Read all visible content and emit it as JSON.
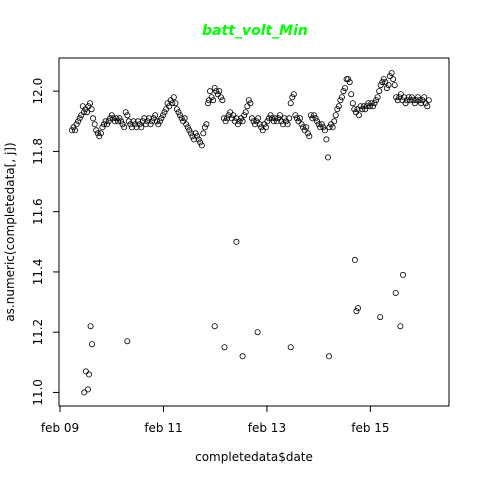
{
  "chart_data": {
    "type": "scatter",
    "title": "batt_volt_Min",
    "title_color": "#00ff00",
    "xlabel": "completedata$date",
    "ylabel": "as.numeric(completedata[, j])",
    "x_tick_labels": [
      "feb 09",
      "feb 11",
      "feb 13",
      "feb 15"
    ],
    "x_ticks_day": [
      9,
      11,
      13,
      15
    ],
    "y_ticks": [
      11.0,
      11.2,
      11.4,
      11.6,
      11.8,
      12.0
    ],
    "y_tick_labels": [
      "11.0",
      "11.2",
      "11.4",
      "11.6",
      "11.8",
      "12.0"
    ],
    "xlim_day": [
      8.98,
      16.52
    ],
    "ylim": [
      10.955,
      12.11
    ],
    "grid": false,
    "points": [
      [
        9.23,
        11.87
      ],
      [
        9.26,
        11.88
      ],
      [
        9.29,
        11.87
      ],
      [
        9.32,
        11.89
      ],
      [
        9.35,
        11.9
      ],
      [
        9.38,
        11.91
      ],
      [
        9.41,
        11.92
      ],
      [
        9.44,
        11.95
      ],
      [
        9.46,
        11.93
      ],
      [
        9.49,
        11.94
      ],
      [
        9.52,
        11.93
      ],
      [
        9.55,
        11.95
      ],
      [
        9.58,
        11.96
      ],
      [
        9.61,
        11.94
      ],
      [
        9.64,
        11.91
      ],
      [
        9.67,
        11.89
      ],
      [
        9.7,
        11.87
      ],
      [
        9.73,
        11.86
      ],
      [
        9.76,
        11.85
      ],
      [
        9.79,
        11.86
      ],
      [
        9.82,
        11.88
      ],
      [
        9.85,
        11.89
      ],
      [
        9.88,
        11.9
      ],
      [
        9.91,
        11.89
      ],
      [
        9.94,
        11.9
      ],
      [
        9.97,
        11.91
      ],
      [
        10.0,
        11.92
      ],
      [
        10.03,
        11.91
      ],
      [
        10.06,
        11.9
      ],
      [
        10.09,
        11.91
      ],
      [
        10.12,
        11.9
      ],
      [
        10.15,
        11.91
      ],
      [
        10.18,
        11.9
      ],
      [
        10.21,
        11.89
      ],
      [
        10.24,
        11.88
      ],
      [
        10.27,
        11.93
      ],
      [
        10.3,
        11.92
      ],
      [
        10.33,
        11.9
      ],
      [
        10.36,
        11.89
      ],
      [
        10.39,
        11.88
      ],
      [
        10.42,
        11.9
      ],
      [
        10.45,
        11.89
      ],
      [
        10.48,
        11.88
      ],
      [
        10.51,
        11.9
      ],
      [
        10.54,
        11.89
      ],
      [
        10.57,
        11.88
      ],
      [
        10.6,
        11.9
      ],
      [
        10.63,
        11.91
      ],
      [
        10.66,
        11.89
      ],
      [
        10.69,
        11.9
      ],
      [
        10.72,
        11.91
      ],
      [
        10.75,
        11.89
      ],
      [
        10.78,
        11.9
      ],
      [
        10.81,
        11.91
      ],
      [
        10.84,
        11.92
      ],
      [
        10.87,
        11.9
      ],
      [
        10.9,
        11.89
      ],
      [
        10.93,
        11.9
      ],
      [
        10.96,
        11.91
      ],
      [
        10.99,
        11.92
      ],
      [
        11.02,
        11.93
      ],
      [
        11.05,
        11.94
      ],
      [
        11.08,
        11.96
      ],
      [
        11.11,
        11.95
      ],
      [
        11.14,
        11.97
      ],
      [
        11.17,
        11.96
      ],
      [
        11.2,
        11.98
      ],
      [
        11.23,
        11.96
      ],
      [
        11.26,
        11.94
      ],
      [
        11.29,
        11.93
      ],
      [
        11.32,
        11.92
      ],
      [
        11.35,
        11.91
      ],
      [
        11.38,
        11.9
      ],
      [
        11.41,
        11.91
      ],
      [
        11.44,
        11.89
      ],
      [
        11.47,
        11.88
      ],
      [
        11.5,
        11.87
      ],
      [
        11.53,
        11.86
      ],
      [
        11.56,
        11.85
      ],
      [
        11.59,
        11.84
      ],
      [
        11.62,
        11.86
      ],
      [
        11.65,
        11.85
      ],
      [
        11.68,
        11.84
      ],
      [
        11.71,
        11.83
      ],
      [
        11.74,
        11.82
      ],
      [
        11.77,
        11.86
      ],
      [
        11.8,
        11.88
      ],
      [
        11.83,
        11.89
      ],
      [
        11.86,
        11.96
      ],
      [
        11.88,
        11.97
      ],
      [
        11.9,
        12.0
      ],
      [
        11.93,
        11.98
      ],
      [
        11.96,
        11.97
      ],
      [
        11.99,
        12.01
      ],
      [
        12.02,
        12.0
      ],
      [
        12.05,
        11.99
      ],
      [
        12.08,
        12.0
      ],
      [
        12.11,
        11.98
      ],
      [
        12.14,
        11.97
      ],
      [
        12.17,
        11.91
      ],
      [
        12.2,
        11.9
      ],
      [
        12.23,
        11.91
      ],
      [
        12.26,
        11.92
      ],
      [
        12.29,
        11.93
      ],
      [
        12.32,
        11.91
      ],
      [
        12.35,
        11.92
      ],
      [
        12.38,
        11.9
      ],
      [
        12.41,
        11.91
      ],
      [
        12.44,
        11.89
      ],
      [
        12.47,
        11.9
      ],
      [
        12.5,
        11.91
      ],
      [
        12.53,
        11.9
      ],
      [
        12.56,
        11.92
      ],
      [
        12.59,
        11.93
      ],
      [
        12.62,
        11.95
      ],
      [
        12.65,
        11.97
      ],
      [
        12.68,
        11.96
      ],
      [
        12.71,
        11.91
      ],
      [
        12.74,
        11.9
      ],
      [
        12.77,
        11.89
      ],
      [
        12.8,
        11.9
      ],
      [
        12.83,
        11.91
      ],
      [
        12.86,
        11.89
      ],
      [
        12.89,
        11.88
      ],
      [
        12.92,
        11.87
      ],
      [
        12.95,
        11.89
      ],
      [
        12.98,
        11.88
      ],
      [
        13.01,
        11.9
      ],
      [
        13.04,
        11.91
      ],
      [
        13.07,
        11.92
      ],
      [
        13.1,
        11.91
      ],
      [
        13.13,
        11.9
      ],
      [
        13.16,
        11.91
      ],
      [
        13.19,
        11.9
      ],
      [
        13.22,
        11.91
      ],
      [
        13.25,
        11.92
      ],
      [
        13.28,
        11.9
      ],
      [
        13.31,
        11.89
      ],
      [
        13.34,
        11.91
      ],
      [
        13.37,
        11.9
      ],
      [
        13.4,
        11.89
      ],
      [
        13.43,
        11.91
      ],
      [
        13.46,
        11.96
      ],
      [
        13.49,
        11.98
      ],
      [
        13.52,
        11.99
      ],
      [
        13.55,
        11.92
      ],
      [
        13.58,
        11.91
      ],
      [
        13.61,
        11.9
      ],
      [
        13.64,
        11.91
      ],
      [
        13.67,
        11.89
      ],
      [
        13.7,
        11.88
      ],
      [
        13.73,
        11.87
      ],
      [
        13.76,
        11.88
      ],
      [
        13.79,
        11.86
      ],
      [
        13.82,
        11.85
      ],
      [
        13.85,
        11.92
      ],
      [
        13.88,
        11.91
      ],
      [
        13.91,
        11.92
      ],
      [
        13.94,
        11.91
      ],
      [
        13.97,
        11.9
      ],
      [
        14.0,
        11.89
      ],
      [
        14.03,
        11.88
      ],
      [
        14.06,
        11.89
      ],
      [
        14.09,
        11.88
      ],
      [
        14.12,
        11.87
      ],
      [
        14.15,
        11.84
      ],
      [
        14.18,
        11.78
      ],
      [
        14.21,
        11.88
      ],
      [
        14.24,
        11.89
      ],
      [
        14.27,
        11.88
      ],
      [
        14.3,
        11.9
      ],
      [
        14.33,
        11.92
      ],
      [
        14.36,
        11.94
      ],
      [
        14.39,
        11.95
      ],
      [
        14.42,
        11.97
      ],
      [
        14.45,
        11.98
      ],
      [
        14.48,
        12.0
      ],
      [
        14.51,
        12.01
      ],
      [
        14.54,
        12.04
      ],
      [
        14.57,
        12.04
      ],
      [
        14.6,
        12.03
      ],
      [
        14.63,
        11.99
      ],
      [
        14.66,
        11.96
      ],
      [
        14.69,
        11.94
      ],
      [
        14.72,
        11.93
      ],
      [
        14.75,
        11.94
      ],
      [
        14.78,
        11.92
      ],
      [
        14.81,
        11.95
      ],
      [
        14.84,
        11.94
      ],
      [
        14.87,
        11.95
      ],
      [
        14.9,
        11.94
      ],
      [
        14.93,
        11.95
      ],
      [
        14.96,
        11.96
      ],
      [
        14.99,
        11.95
      ],
      [
        15.02,
        11.96
      ],
      [
        15.05,
        11.95
      ],
      [
        15.08,
        11.96
      ],
      [
        15.11,
        11.97
      ],
      [
        15.14,
        11.98
      ],
      [
        15.17,
        12.0
      ],
      [
        15.2,
        12.02
      ],
      [
        15.23,
        12.03
      ],
      [
        15.26,
        12.04
      ],
      [
        15.29,
        12.03
      ],
      [
        15.32,
        12.01
      ],
      [
        15.35,
        12.02
      ],
      [
        15.38,
        12.05
      ],
      [
        15.41,
        12.06
      ],
      [
        15.44,
        12.04
      ],
      [
        15.47,
        12.02
      ],
      [
        15.5,
        11.98
      ],
      [
        15.53,
        11.97
      ],
      [
        15.56,
        11.98
      ],
      [
        15.59,
        11.99
      ],
      [
        15.62,
        11.97
      ],
      [
        15.65,
        11.98
      ],
      [
        15.68,
        11.96
      ],
      [
        15.71,
        11.97
      ],
      [
        15.74,
        11.98
      ],
      [
        15.77,
        11.97
      ],
      [
        15.8,
        11.98
      ],
      [
        15.83,
        11.97
      ],
      [
        15.86,
        11.96
      ],
      [
        15.89,
        11.97
      ],
      [
        15.92,
        11.98
      ],
      [
        15.95,
        11.97
      ],
      [
        15.98,
        11.96
      ],
      [
        16.01,
        11.97
      ],
      [
        16.04,
        11.98
      ],
      [
        16.07,
        11.96
      ],
      [
        16.1,
        11.95
      ],
      [
        16.13,
        11.97
      ],
      [
        9.47,
        11.0
      ],
      [
        9.5,
        11.07
      ],
      [
        9.54,
        11.01
      ],
      [
        9.56,
        11.06
      ],
      [
        9.59,
        11.22
      ],
      [
        9.62,
        11.16
      ],
      [
        10.3,
        11.17
      ],
      [
        11.99,
        11.22
      ],
      [
        12.18,
        11.15
      ],
      [
        12.41,
        11.5
      ],
      [
        12.53,
        11.12
      ],
      [
        12.82,
        11.2
      ],
      [
        13.46,
        11.15
      ],
      [
        14.2,
        11.12
      ],
      [
        14.7,
        11.44
      ],
      [
        14.73,
        11.27
      ],
      [
        14.76,
        11.28
      ],
      [
        15.19,
        11.25
      ],
      [
        15.49,
        11.33
      ],
      [
        15.58,
        11.22
      ],
      [
        15.63,
        11.39
      ]
    ]
  }
}
